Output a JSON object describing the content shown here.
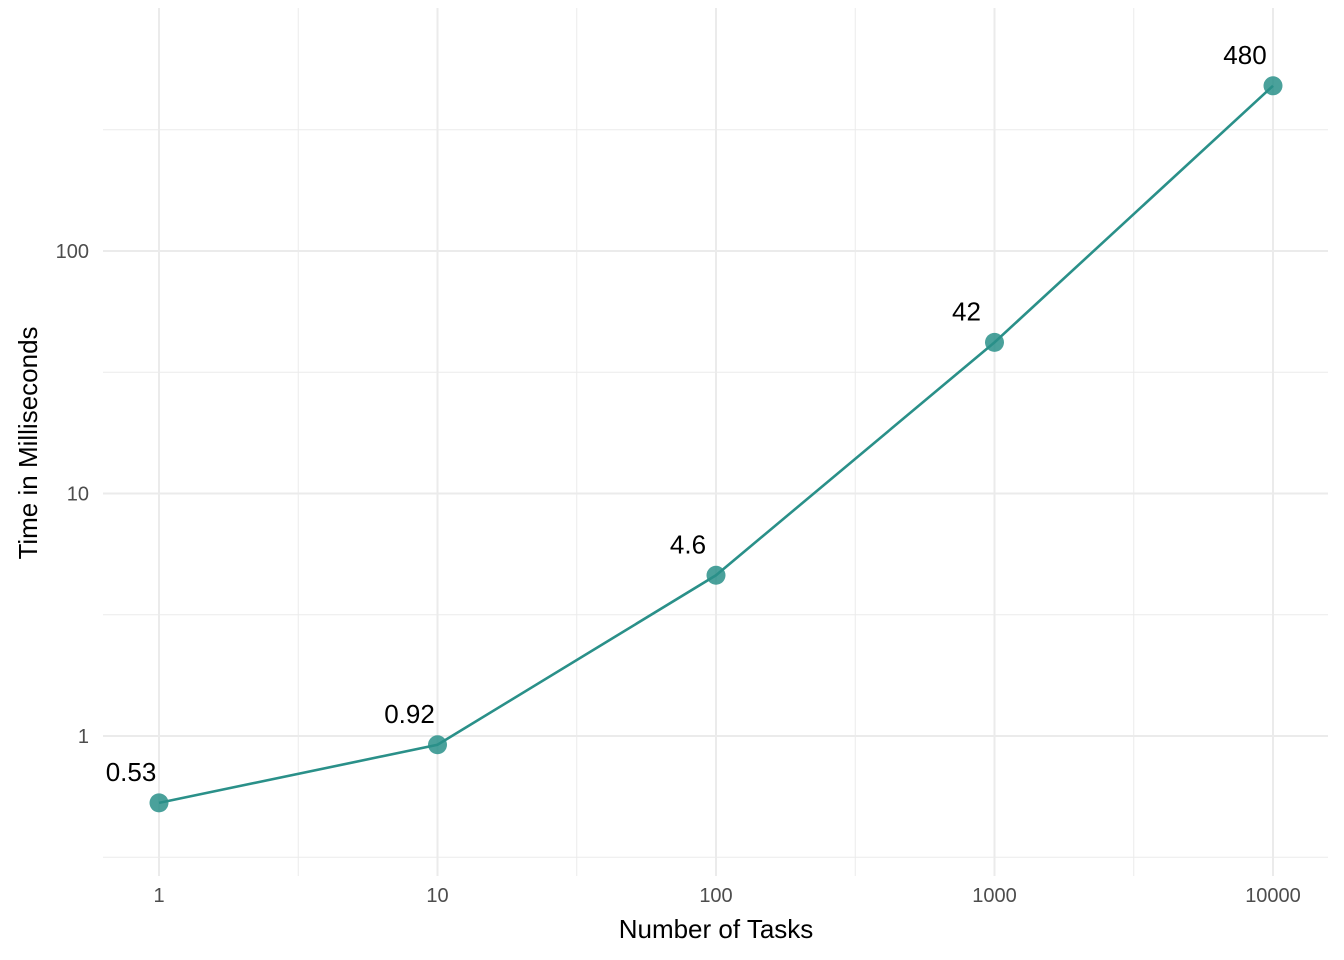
{
  "chart_data": {
    "type": "line",
    "title": "",
    "xlabel": "Number of Tasks",
    "ylabel": "Time in Milliseconds",
    "x_scale": "log10",
    "y_scale": "log10",
    "xlim": [
      1,
      10000
    ],
    "ylim": [
      0.3,
      500
    ],
    "x_ticks": [
      1,
      10,
      100,
      1000,
      10000
    ],
    "x_tick_labels": [
      "1",
      "10",
      "100",
      "1000",
      "10000"
    ],
    "y_ticks": [
      1,
      10,
      100
    ],
    "y_tick_labels": [
      "1",
      "10",
      "100"
    ],
    "grid": true,
    "legend": "none",
    "series": [
      {
        "x": [
          1,
          10,
          100,
          1000,
          10000
        ],
        "values": [
          0.53,
          0.92,
          4.6,
          42,
          480
        ],
        "labels": [
          "0.53",
          "0.92",
          "4.6",
          "42",
          "480"
        ],
        "color": "#2a9089"
      }
    ]
  }
}
